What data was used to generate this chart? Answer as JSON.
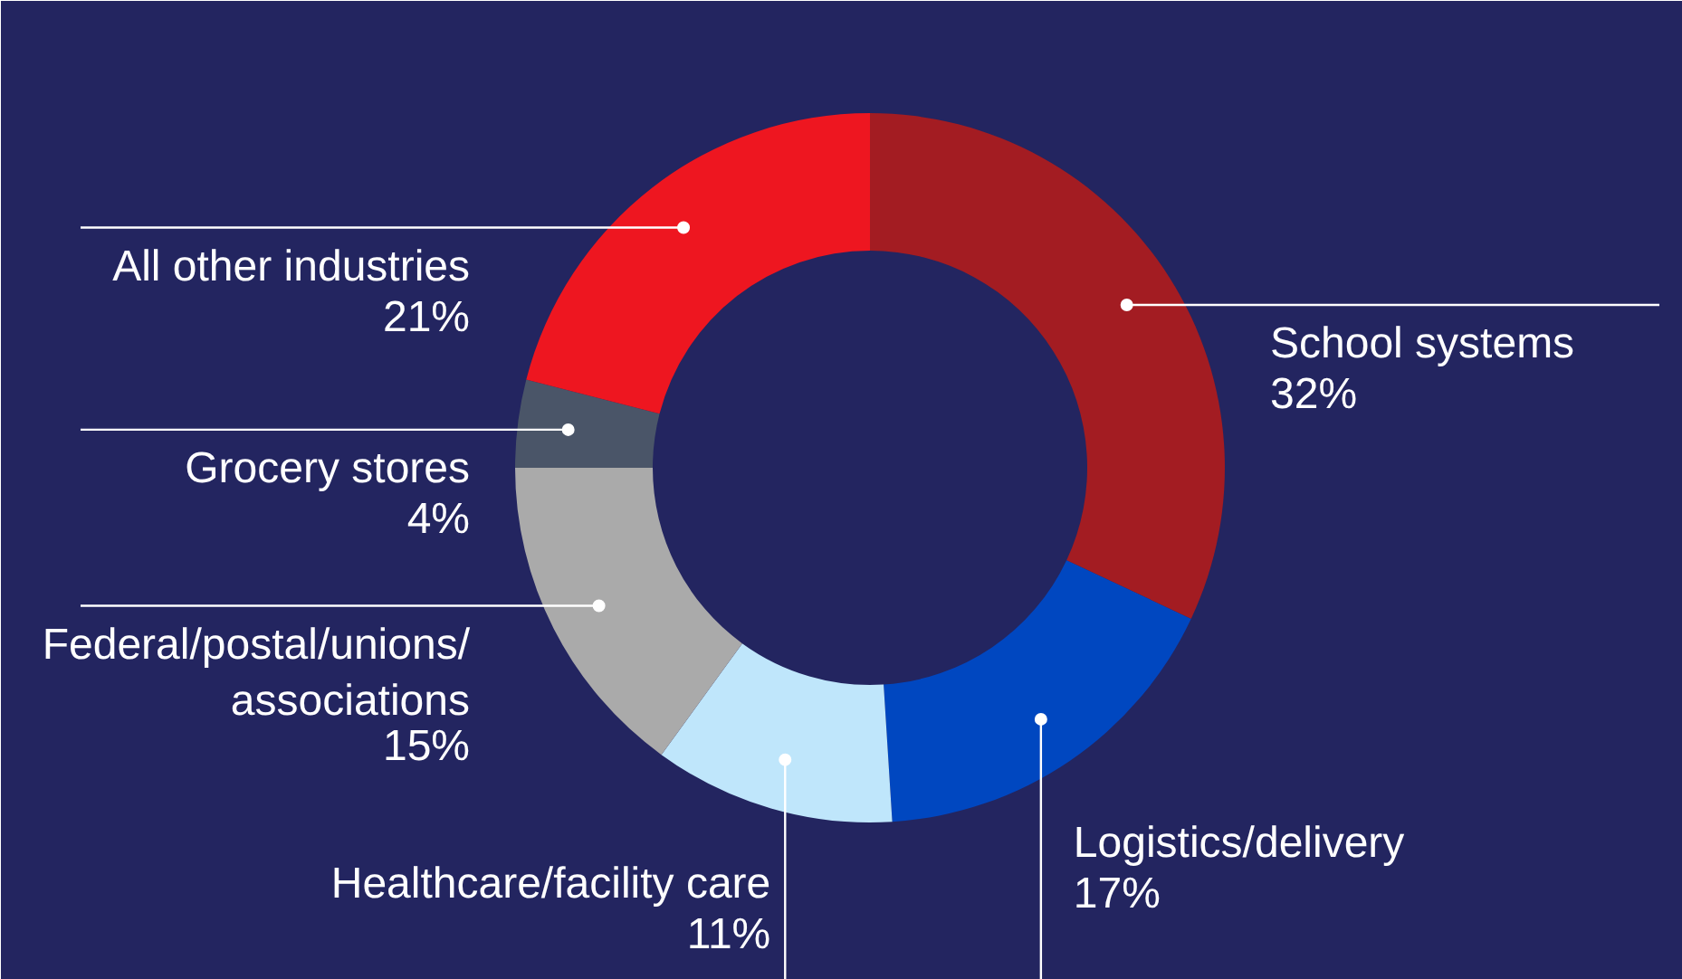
{
  "chart_data": {
    "type": "donut",
    "categories": [
      "School systems",
      "Logistics/delivery",
      "Healthcare/facility care",
      "Federal/postal/unions/associations",
      "Grocery stores",
      "All other industries"
    ],
    "values": [
      32,
      17,
      11,
      15,
      4,
      21
    ],
    "value_labels": [
      "32%",
      "17%",
      "11%",
      "15%",
      "4%",
      "21%"
    ],
    "colors": [
      "#a31c22",
      "#0047c0",
      "#bfe6fb",
      "#aaaaaa",
      "#4a5568",
      "#ee1620"
    ]
  }
}
